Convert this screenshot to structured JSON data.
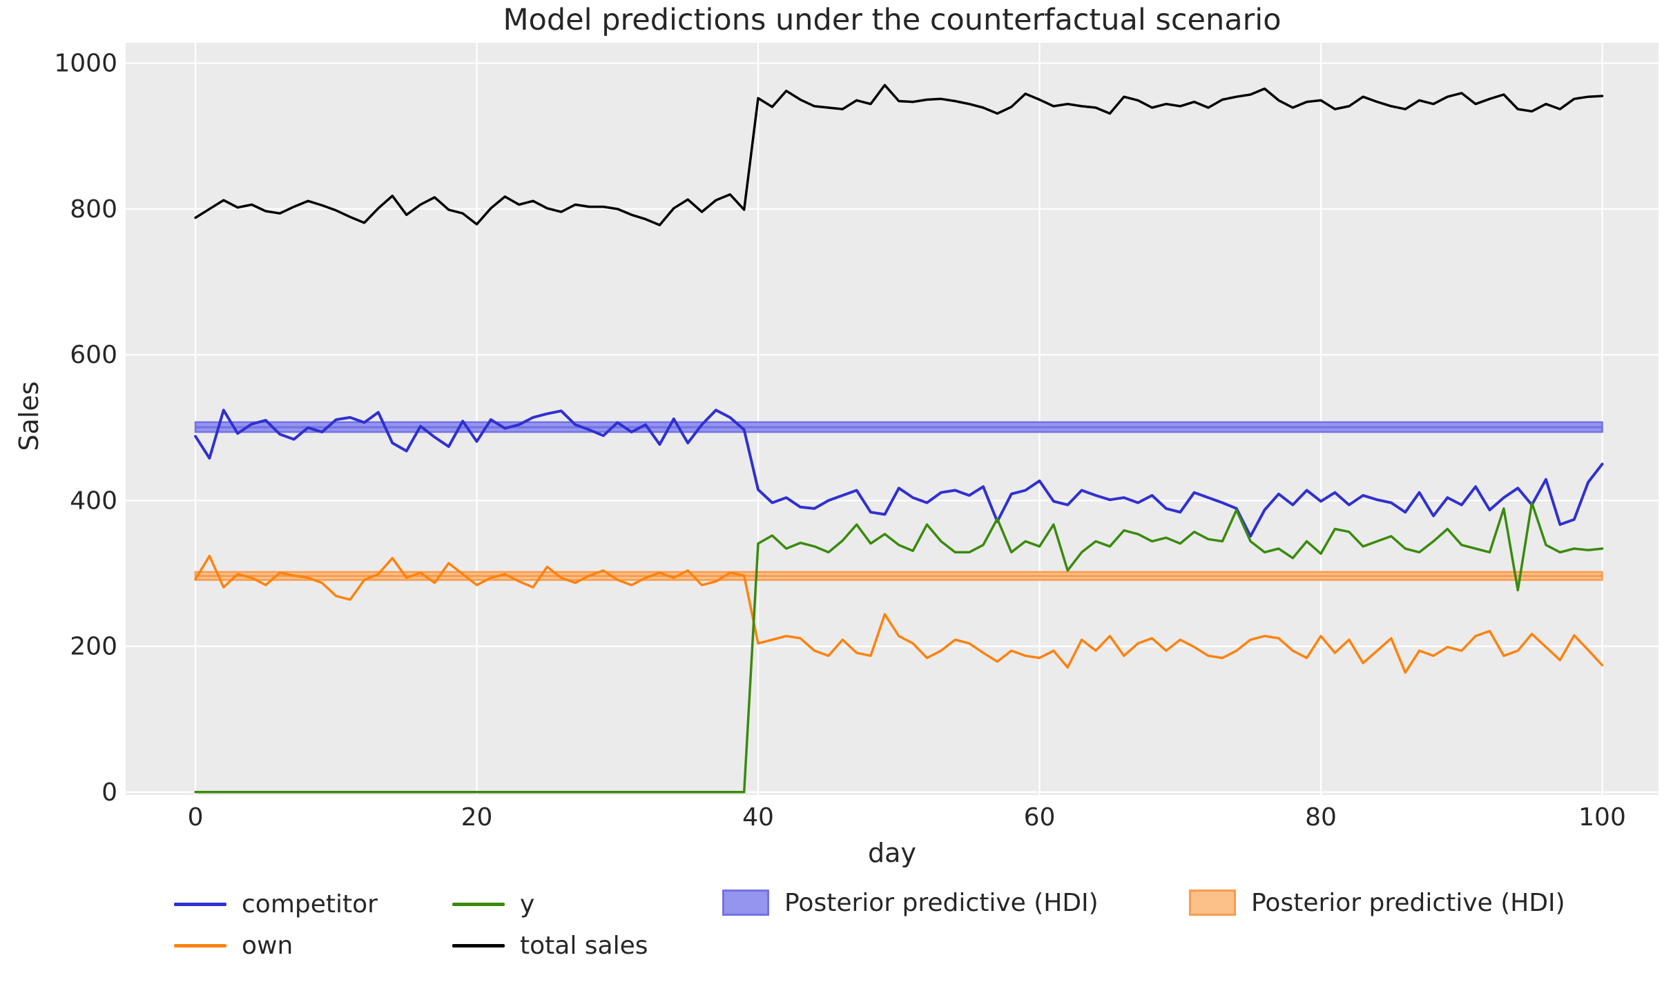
{
  "figure": {
    "title": "Model predictions under the counterfactual scenario",
    "xlabel": "day",
    "ylabel": "Sales"
  },
  "legend": {
    "items": [
      {
        "label": "competitor",
        "type": "line",
        "color": "#3030d0"
      },
      {
        "label": "own",
        "type": "line",
        "color": "#fe820e"
      },
      {
        "label": "y",
        "type": "line",
        "color": "#3a8a0d"
      },
      {
        "label": "total sales",
        "type": "line",
        "color": "#000000"
      },
      {
        "label": "Posterior predictive (HDI)",
        "type": "patch",
        "color": "#9595ef",
        "border": "#7272e4"
      },
      {
        "label": "Posterior predictive (HDI)",
        "type": "patch",
        "color": "#fcc089",
        "border": "#f89b4e"
      }
    ]
  },
  "chart_data": {
    "type": "line",
    "title": "Model predictions under the counterfactual scenario",
    "xlabel": "day",
    "ylabel": "Sales",
    "plot_bg": "#ebebeb",
    "grid_color": "#ffffff",
    "text_color": "#262626",
    "xlim": [
      -4.96,
      104.0
    ],
    "ylim": [
      -4,
      1028
    ],
    "x_ticks": [
      0,
      20,
      40,
      60,
      80,
      100
    ],
    "y_ticks": [
      0,
      200,
      400,
      600,
      800,
      1000
    ],
    "days": {
      "start": 0,
      "end": 100,
      "step": 1
    },
    "bands": [
      {
        "name": "Posterior predictive (HDI) competitor",
        "x0": 0,
        "x1": 100,
        "lo": 494,
        "hi": 507.5,
        "mid": 500.5,
        "fill": "#9595ef",
        "edge": "#7272e4"
      },
      {
        "name": "Posterior predictive (HDI) own",
        "x0": 0,
        "x1": 100,
        "lo": 291,
        "hi": 302,
        "mid": 296.5,
        "fill": "#fcc089",
        "edge": "#f89b4e"
      }
    ],
    "series": [
      {
        "name": "competitor",
        "color": "#3030d0",
        "width": 4,
        "values": [
          488,
          458,
          524,
          492,
          505,
          510,
          491,
          484,
          500,
          494,
          511,
          514,
          507,
          521,
          479,
          468,
          502,
          487,
          474,
          509,
          481,
          511,
          499,
          504,
          514,
          519,
          523,
          504,
          497,
          489,
          507,
          494,
          504,
          477,
          512,
          479,
          504,
          524,
          514,
          497,
          415,
          397,
          404,
          391,
          389,
          400,
          407,
          414,
          384,
          381,
          417,
          404,
          397,
          411,
          414,
          407,
          419,
          371,
          409,
          414,
          427,
          399,
          394,
          414,
          407,
          401,
          404,
          397,
          407,
          389,
          384,
          411,
          404,
          397,
          389,
          351,
          387,
          409,
          394,
          414,
          399,
          411,
          394,
          407,
          401,
          397,
          384,
          411,
          379,
          404,
          394,
          419,
          387,
          404,
          417,
          394,
          429,
          367,
          374,
          425,
          450
        ]
      },
      {
        "name": "own",
        "color": "#fe820e",
        "width": 3.5,
        "values": [
          292,
          324,
          281,
          299,
          294,
          284,
          301,
          297,
          294,
          287,
          269,
          264,
          291,
          299,
          321,
          294,
          301,
          287,
          314,
          299,
          284,
          294,
          299,
          289,
          281,
          309,
          294,
          287,
          297,
          304,
          291,
          284,
          294,
          301,
          294,
          304,
          284,
          289,
          301,
          297,
          204,
          209,
          214,
          211,
          194,
          187,
          209,
          191,
          187,
          244,
          214,
          204,
          184,
          194,
          209,
          204,
          191,
          179,
          194,
          187,
          184,
          194,
          171,
          209,
          194,
          214,
          187,
          204,
          211,
          194,
          209,
          199,
          187,
          184,
          194,
          209,
          214,
          211,
          194,
          184,
          214,
          191,
          209,
          177,
          194,
          211,
          164,
          194,
          187,
          199,
          194,
          214,
          221,
          187,
          194,
          217,
          199,
          181,
          215,
          195,
          174
        ]
      },
      {
        "name": "y",
        "color": "#3a8a0d",
        "width": 3.5,
        "values": [
          0,
          0,
          0,
          0,
          0,
          0,
          0,
          0,
          0,
          0,
          0,
          0,
          0,
          0,
          0,
          0,
          0,
          0,
          0,
          0,
          0,
          0,
          0,
          0,
          0,
          0,
          0,
          0,
          0,
          0,
          0,
          0,
          0,
          0,
          0,
          0,
          0,
          0,
          0,
          0,
          341,
          352,
          334,
          342,
          337,
          329,
          345,
          367,
          341,
          354,
          339,
          331,
          367,
          344,
          329,
          329,
          339,
          375,
          329,
          344,
          337,
          367,
          304,
          329,
          344,
          337,
          359,
          354,
          344,
          349,
          341,
          357,
          347,
          344,
          387,
          344,
          329,
          334,
          321,
          344,
          327,
          361,
          357,
          337,
          344,
          351,
          334,
          329,
          344,
          361,
          339,
          334,
          329,
          389,
          277,
          397,
          339,
          329,
          334,
          332,
          334
        ]
      },
      {
        "name": "total sales",
        "color": "#000000",
        "width": 3.5,
        "values": [
          788,
          800,
          812,
          802,
          806,
          797,
          794,
          803,
          811,
          805,
          798,
          789,
          781,
          801,
          818,
          792,
          806,
          816,
          799,
          794,
          779,
          801,
          817,
          806,
          811,
          801,
          796,
          806,
          803,
          803,
          800,
          792,
          786,
          778,
          801,
          813,
          796,
          812,
          820,
          799,
          952,
          940,
          962,
          950,
          941,
          939,
          937,
          949,
          944,
          970,
          948,
          947,
          950,
          951,
          948,
          944,
          939,
          931,
          940,
          958,
          950,
          941,
          944,
          941,
          939,
          931,
          954,
          949,
          939,
          944,
          941,
          947,
          939,
          950,
          954,
          957,
          965,
          949,
          939,
          947,
          949,
          937,
          941,
          954,
          947,
          941,
          937,
          949,
          944,
          954,
          959,
          944,
          951,
          957,
          937,
          934,
          944,
          937,
          951,
          954,
          955
        ]
      }
    ]
  }
}
